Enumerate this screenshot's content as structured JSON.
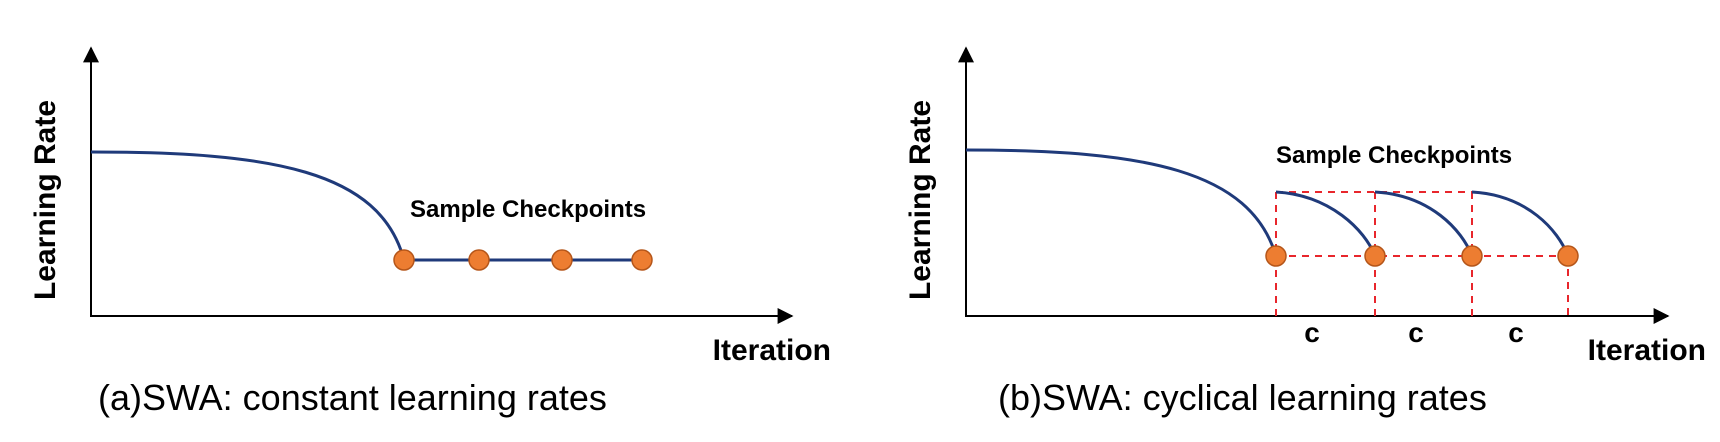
{
  "colors": {
    "curve": "#1f3a7a",
    "marker": "#ed7d31",
    "marker_edge": "#b5561a",
    "guide": "#e8262c",
    "axis": "#000000"
  },
  "panels": [
    {
      "ylabel": "Learning Rate",
      "xlabel": "Iteration",
      "annotation": "Sample Checkpoints",
      "caption": "(a)SWA: constant learning rates"
    },
    {
      "ylabel": "Learning Rate",
      "xlabel": "Iteration",
      "annotation": "Sample Checkpoints",
      "cycle_label": "c",
      "caption": "(b)SWA: cyclical learning rates"
    }
  ]
}
